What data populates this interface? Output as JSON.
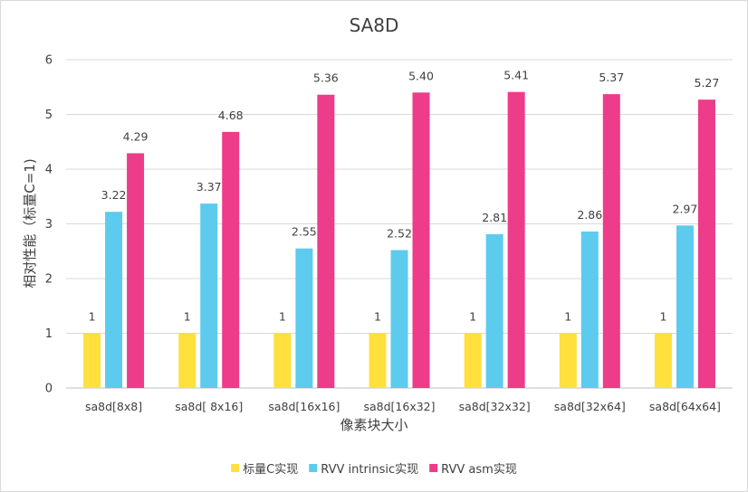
{
  "chart_data": {
    "type": "bar",
    "title": "SA8D",
    "xlabel": "像素块大小",
    "ylabel": "相对性能（标量C=1)",
    "ylim": [
      0,
      6
    ],
    "yticks": [
      "0",
      "1",
      "2",
      "3",
      "4",
      "5",
      "6"
    ],
    "grid": true,
    "legend_position": "bottom",
    "categories": [
      "sa8d[8x8]",
      "sa8d[ 8x16]",
      "sa8d[16x16]",
      "sa8d[16x32]",
      "sa8d[32x32]",
      "sa8d[32x64]",
      "sa8d[64x64]"
    ],
    "series": [
      {
        "name": "标量C实现",
        "color": "#ffe03c",
        "values": [
          1,
          1,
          1,
          1,
          1,
          1,
          1
        ],
        "labels": [
          "1",
          "1",
          "1",
          "1",
          "1",
          "1",
          "1"
        ]
      },
      {
        "name": "RVV intrinsic实现",
        "color": "#5ccbee",
        "values": [
          3.22,
          3.37,
          2.55,
          2.52,
          2.81,
          2.86,
          2.97
        ],
        "labels": [
          "3.22",
          "3.37",
          "2.55",
          "2.52",
          "2.81",
          "2.86",
          "2.97"
        ]
      },
      {
        "name": "RVV asm实现",
        "color": "#ec3c8a",
        "values": [
          4.29,
          4.68,
          5.36,
          5.4,
          5.41,
          5.37,
          5.27
        ],
        "labels": [
          "4.29",
          "4.68",
          "5.36",
          "5.40",
          "5.41",
          "5.37",
          "5.27"
        ]
      }
    ]
  }
}
